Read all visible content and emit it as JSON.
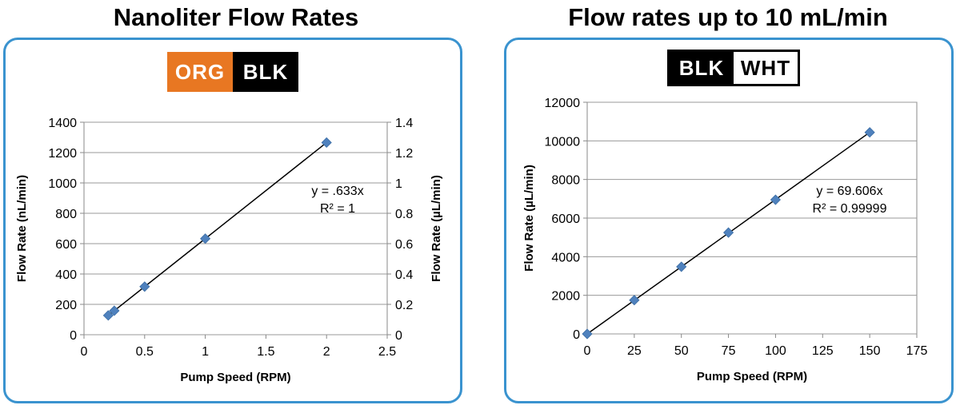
{
  "titles": {
    "left": "Nanoliter Flow Rates",
    "right": "Flow rates up to 10 mL/min"
  },
  "tube_labels": {
    "left": [
      "ORG",
      "BLK"
    ],
    "right": [
      "BLK",
      "WHT"
    ]
  },
  "colors": {
    "panel_border": "#3a93cf",
    "marker": "#4f81bd",
    "org": "#e87722",
    "grid": "#999999"
  },
  "chart_data": [
    {
      "type": "scatter",
      "title": "Nanoliter Flow Rates",
      "xlabel": "Pump Speed (RPM)",
      "ylabel": "Flow Rate (nL/min)",
      "y2label": "Flow Rate (µL/min)",
      "xlim": [
        0,
        2.5
      ],
      "ylim": [
        0,
        1400
      ],
      "y2lim": [
        0,
        1.4
      ],
      "xticks": [
        "0",
        "0.5",
        "1",
        "1.5",
        "2",
        "2.5"
      ],
      "yticks": [
        "0",
        "200",
        "400",
        "600",
        "800",
        "1000",
        "1200",
        "1400"
      ],
      "y2ticks": [
        "0",
        "0.2",
        "0.4",
        "0.6",
        "0.8",
        "1",
        "1.2",
        "1.4"
      ],
      "x": [
        0.2,
        0.25,
        0.5,
        1,
        2
      ],
      "y": [
        127,
        158,
        317,
        633,
        1266
      ],
      "trendline": {
        "slope": 633,
        "x_range": [
          0.2,
          2
        ]
      },
      "annotation": [
        "y = .633x",
        "R² = 1"
      ],
      "grid": true
    },
    {
      "type": "scatter",
      "title": "Flow rates up to 10 mL/min",
      "xlabel": "Pump Speed (RPM)",
      "ylabel": "Flow Rate (µL/min)",
      "xlim": [
        0,
        175
      ],
      "ylim": [
        0,
        12000
      ],
      "xticks": [
        "0",
        "25",
        "50",
        "75",
        "100",
        "125",
        "150",
        "175"
      ],
      "yticks": [
        "0",
        "2000",
        "4000",
        "6000",
        "8000",
        "10000",
        "12000"
      ],
      "x": [
        0,
        25,
        50,
        75,
        100,
        150
      ],
      "y": [
        0,
        1750,
        3480,
        5250,
        6950,
        10440
      ],
      "trendline": {
        "slope": 69.606,
        "x_range": [
          0,
          150
        ]
      },
      "annotation": [
        "y = 69.606x",
        "R² = 0.99999"
      ],
      "grid": true
    }
  ]
}
